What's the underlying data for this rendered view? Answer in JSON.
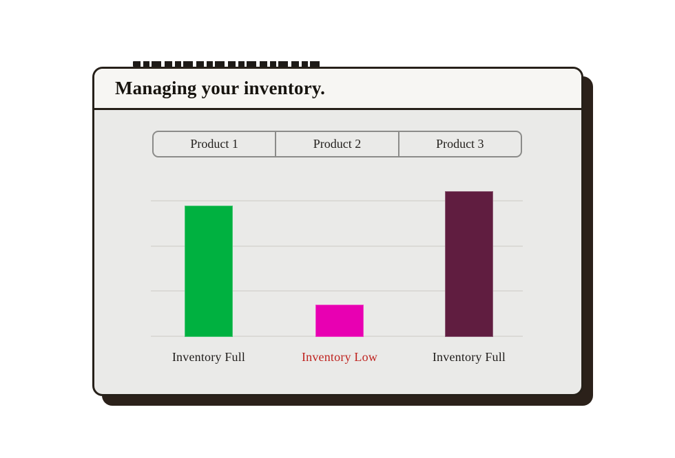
{
  "card": {
    "title": "Managing your inventory."
  },
  "tabs": [
    {
      "label": "Product 1"
    },
    {
      "label": "Product 2"
    },
    {
      "label": "Product 3"
    }
  ],
  "chart_data": {
    "type": "bar",
    "title": "Managing your inventory.",
    "categories": [
      "Product 1",
      "Product 2",
      "Product 3"
    ],
    "values": [
      90,
      22,
      100
    ],
    "value_scale": "percent of tallest bar; no numeric axis shown",
    "labels": [
      "Inventory Full",
      "Inventory Low",
      "Inventory Full"
    ],
    "colors": [
      "#00B140",
      "#E800B2",
      "#601D40"
    ],
    "label_colors": [
      "#1F1C1A",
      "#BF2420",
      "#1F1C1A"
    ],
    "gridlines": 4,
    "grid": "horizontal only",
    "legend": "none",
    "xlabel": "",
    "ylabel": ""
  },
  "colors": {
    "card_header_bg": "#F7F6F3",
    "card_body_bg": "#EAEAE8",
    "card_border": "#262019",
    "card_shadow": "#2B211A",
    "tab_border": "#8B8B89",
    "gridline": "#DBDAD6",
    "status_full_text": "#1F1C1A",
    "status_low_text": "#BF2420"
  }
}
